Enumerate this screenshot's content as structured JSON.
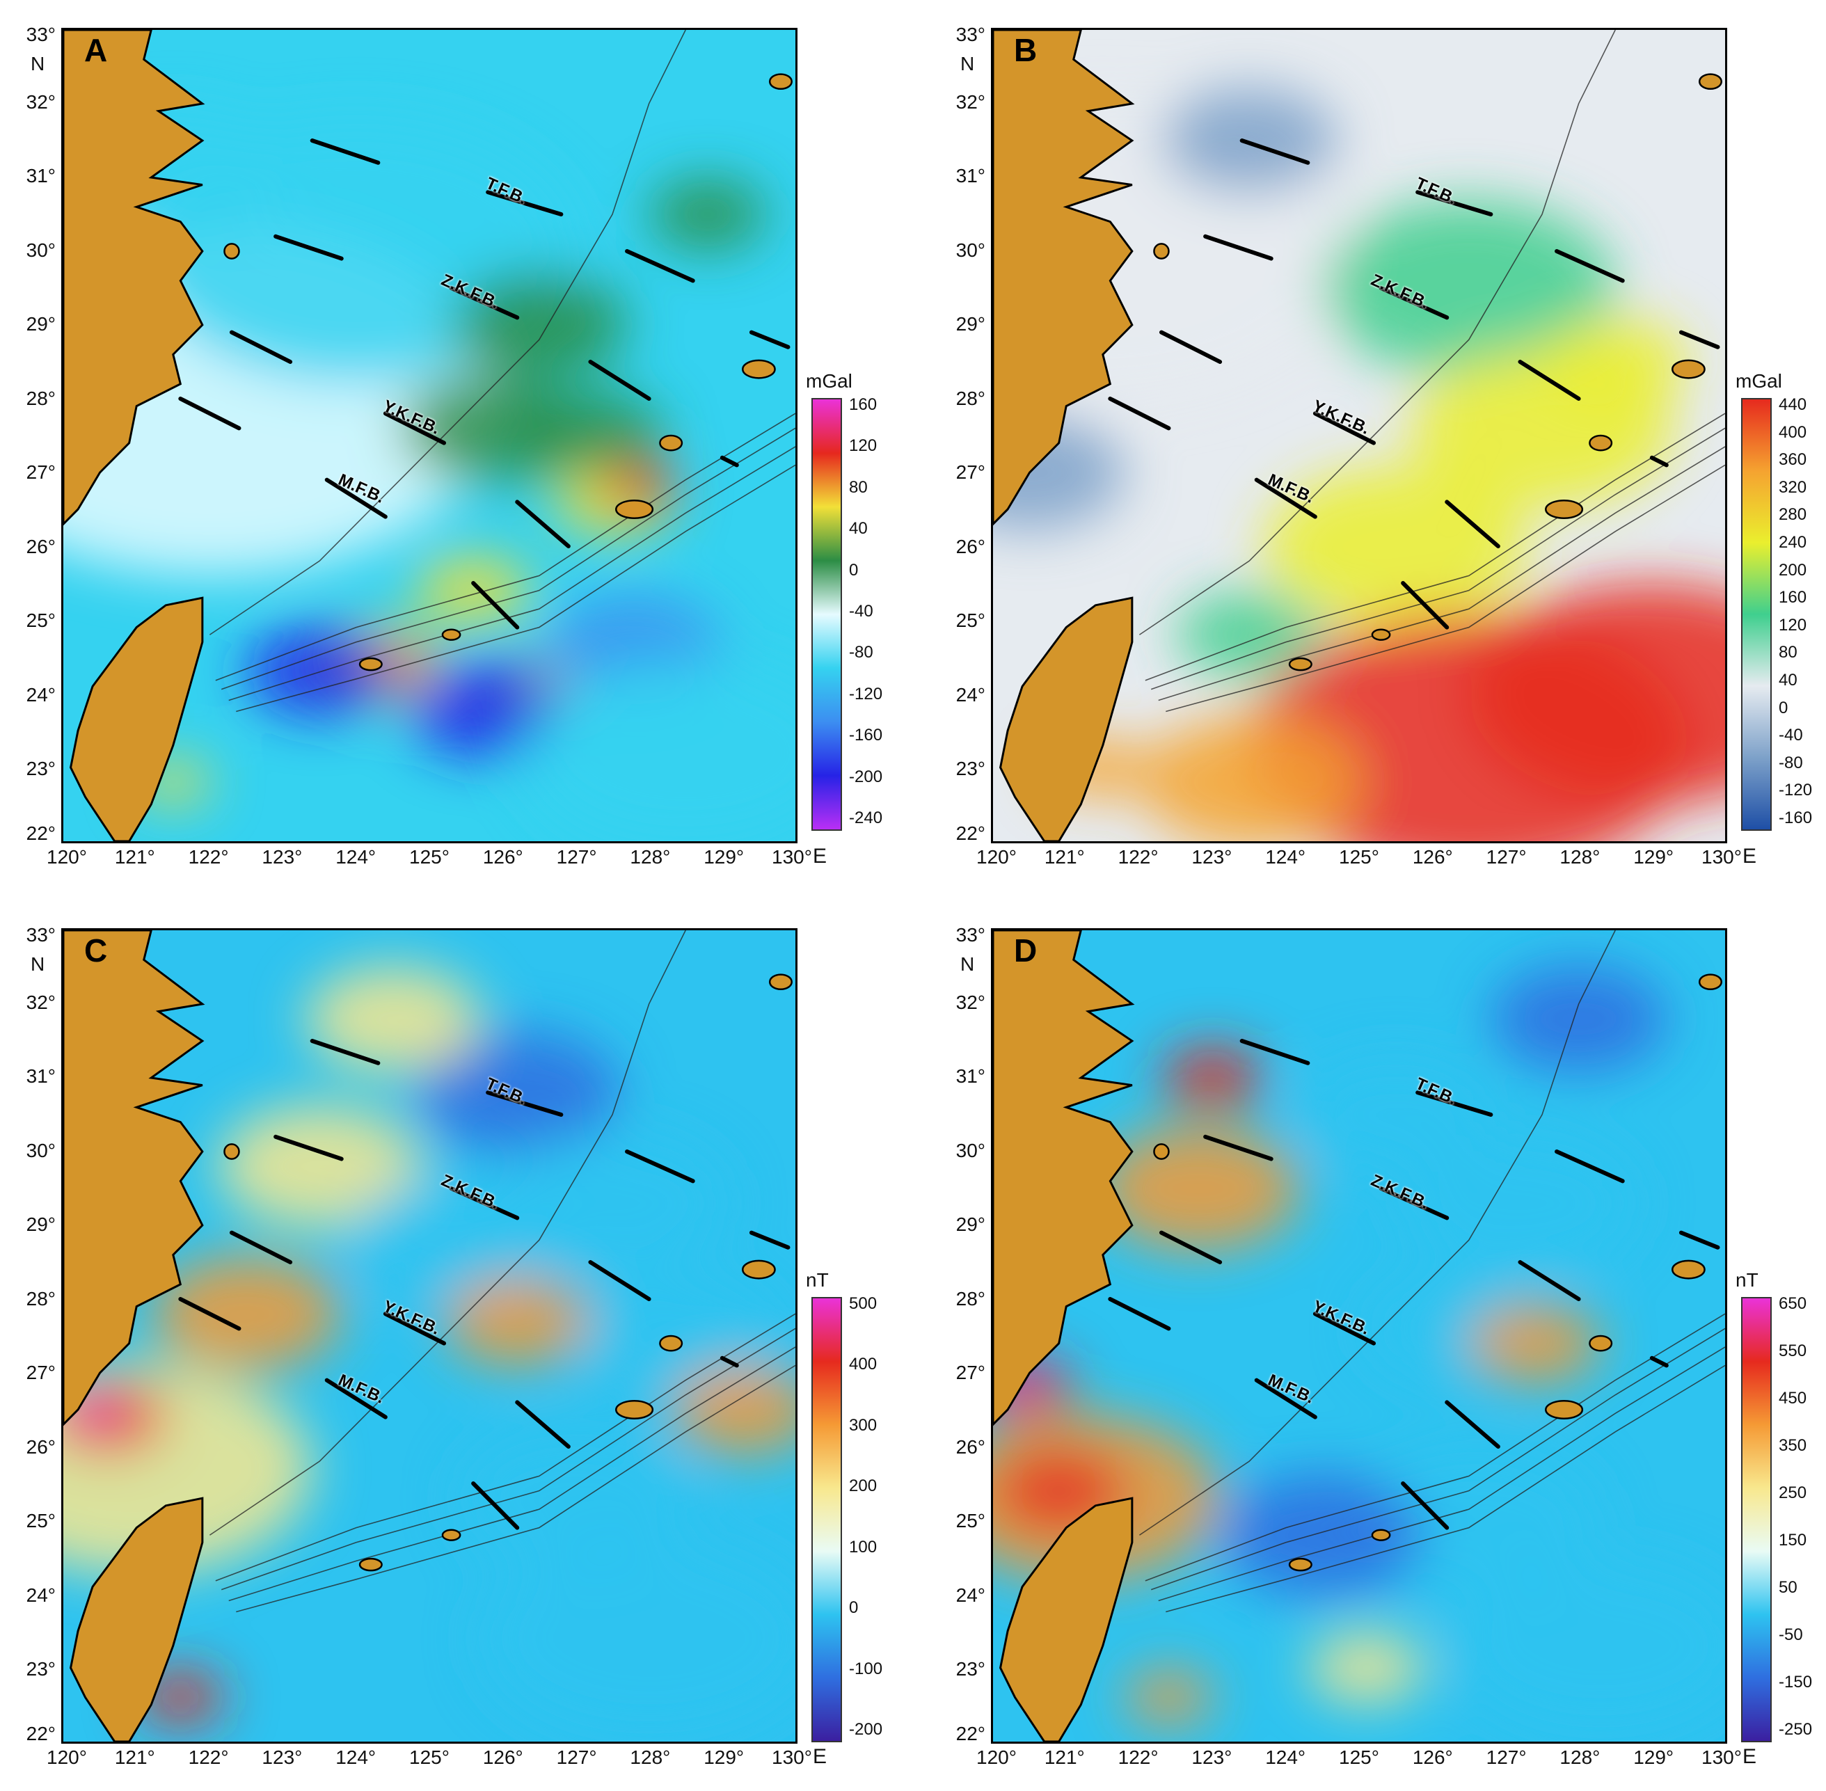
{
  "panels": [
    {
      "letter": "A",
      "unit": "mGal",
      "colors": [
        "#b92ff5",
        "#2623e6",
        "#3c8ef1",
        "#35d2f0",
        "#e6fbff",
        "#2c8d45",
        "#f2e038",
        "#e6281e",
        "#ea32d8"
      ],
      "colorbar_ticks": [
        "160",
        "120",
        "80",
        "40",
        "0",
        "-40",
        "-80",
        "-120",
        "-160",
        "-200",
        "-240"
      ],
      "lat_ticks": [
        "33°",
        "32°",
        "31°",
        "30°",
        "29°",
        "28°",
        "27°",
        "26°",
        "25°",
        "24°",
        "23°",
        "22°"
      ],
      "lon_ticks": [
        "120°",
        "121°",
        "122°",
        "123°",
        "124°",
        "125°",
        "126°",
        "127°",
        "128°",
        "129°",
        "130°"
      ],
      "north_label": "N",
      "east_label": "E",
      "faults": [
        "T.F.B.",
        "Z.K.F.B.",
        "Y.K.F.B.",
        "M.F.B."
      ]
    },
    {
      "letter": "B",
      "unit": "mGal",
      "colors": [
        "#1e4fa6",
        "#7da1c9",
        "#e6ebf0",
        "#3fcf8e",
        "#eaef2e",
        "#f5a330",
        "#e62a1e"
      ],
      "colorbar_ticks": [
        "440",
        "400",
        "360",
        "320",
        "280",
        "240",
        "200",
        "160",
        "120",
        "80",
        "40",
        "0",
        "-40",
        "-80",
        "-120",
        "-160"
      ],
      "lat_ticks": [
        "33°",
        "32°",
        "31°",
        "30°",
        "29°",
        "28°",
        "27°",
        "26°",
        "25°",
        "24°",
        "23°",
        "22°"
      ],
      "lon_ticks": [
        "120°",
        "121°",
        "122°",
        "123°",
        "124°",
        "125°",
        "126°",
        "127°",
        "128°",
        "129°",
        "130°"
      ],
      "north_label": "N",
      "east_label": "E",
      "faults": [
        "T.F.B.",
        "Z.K.F.B.",
        "Y.K.F.B.",
        "M.F.B."
      ]
    },
    {
      "letter": "C",
      "unit": "nT",
      "colors": [
        "#3b1fa0",
        "#2f6fe0",
        "#2ec3f0",
        "#e9fbf5",
        "#f8e88e",
        "#f59a35",
        "#e62a1e",
        "#ea32d8"
      ],
      "colorbar_ticks": [
        "500",
        "400",
        "300",
        "200",
        "100",
        "0",
        "-100",
        "-200"
      ],
      "lat_ticks": [
        "33°",
        "32°",
        "31°",
        "30°",
        "29°",
        "28°",
        "27°",
        "26°",
        "25°",
        "24°",
        "23°",
        "22°"
      ],
      "lon_ticks": [
        "120°",
        "121°",
        "122°",
        "123°",
        "124°",
        "125°",
        "126°",
        "127°",
        "128°",
        "129°",
        "130°"
      ],
      "north_label": "N",
      "east_label": "E",
      "faults": [
        "T.F.B.",
        "Z.K.F.B.",
        "Y.K.F.B.",
        "M.F.B."
      ]
    },
    {
      "letter": "D",
      "unit": "nT",
      "colors": [
        "#3b1fa0",
        "#2f6fe0",
        "#2ec3f0",
        "#e9fbf5",
        "#f8e88e",
        "#f59a35",
        "#e62a1e",
        "#ea32d8"
      ],
      "colorbar_ticks": [
        "650",
        "550",
        "450",
        "350",
        "250",
        "150",
        "50",
        "-50",
        "-150",
        "-250"
      ],
      "lat_ticks": [
        "33°",
        "32°",
        "31°",
        "30°",
        "29°",
        "28°",
        "27°",
        "26°",
        "25°",
        "24°",
        "23°",
        "22°"
      ],
      "lon_ticks": [
        "120°",
        "121°",
        "122°",
        "123°",
        "124°",
        "125°",
        "126°",
        "127°",
        "128°",
        "129°",
        "130°"
      ],
      "north_label": "N",
      "east_label": "E",
      "faults": [
        "T.F.B.",
        "Z.K.F.B.",
        "Y.K.F.B.",
        "M.F.B."
      ]
    }
  ],
  "land_color": "#d4952a"
}
